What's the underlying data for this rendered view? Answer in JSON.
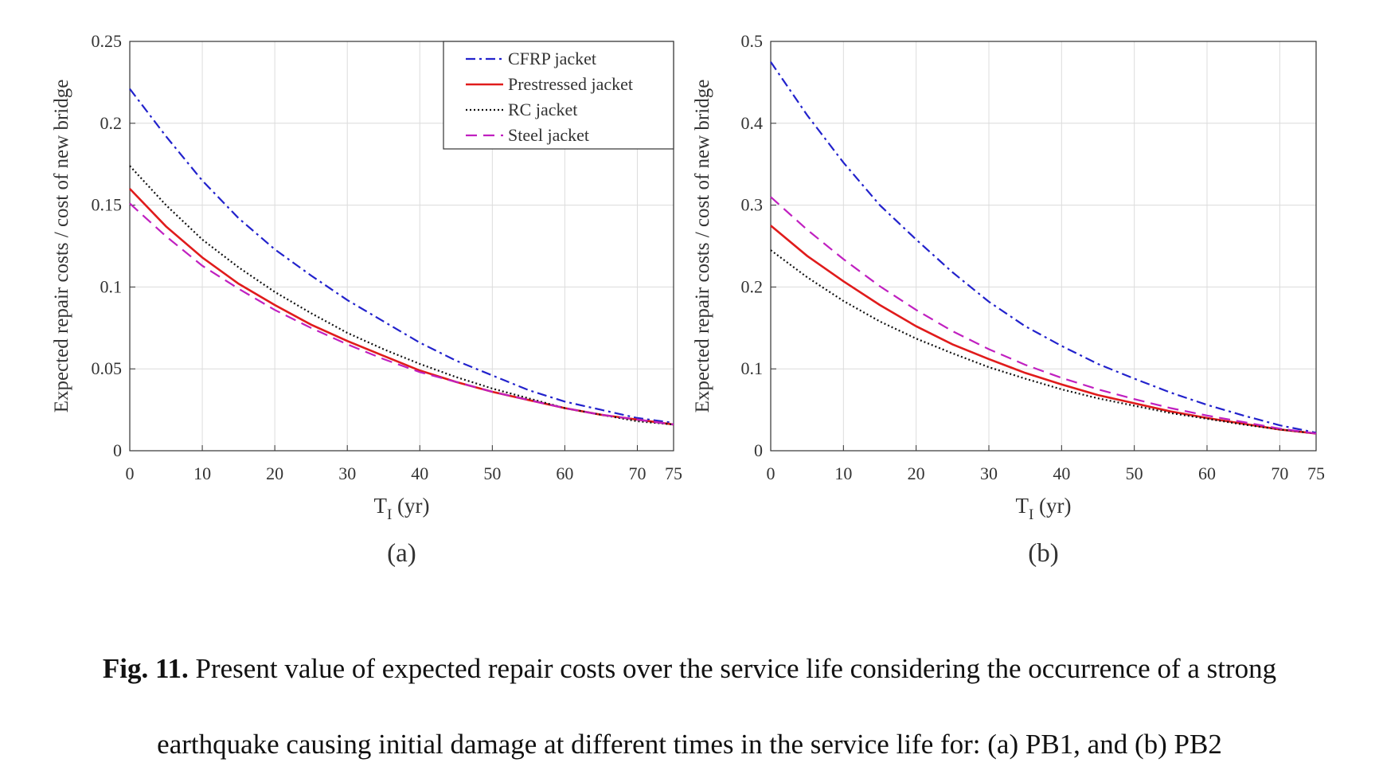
{
  "chart_data": [
    {
      "type": "line",
      "panel_label": "(a)",
      "xlabel_main": "T",
      "xlabel_sub": "I",
      "xlabel_unit": " (yr)",
      "ylabel": "Expected repair costs / cost of new bridge",
      "xlim": [
        0,
        75
      ],
      "ylim": [
        0,
        0.25
      ],
      "xticks": [
        0,
        10,
        20,
        30,
        40,
        50,
        60,
        70,
        75
      ],
      "yticks": [
        0,
        0.05,
        0.1,
        0.15,
        0.2,
        0.25
      ],
      "ytick_labels": [
        "0",
        "0.05",
        "0.1",
        "0.15",
        "0.2",
        "0.25"
      ],
      "grid": true,
      "legend_position": "top-right",
      "x": [
        0,
        5,
        10,
        15,
        20,
        25,
        30,
        35,
        40,
        45,
        50,
        55,
        60,
        65,
        70,
        75
      ],
      "series": [
        {
          "name": "CFRP jacket",
          "color": "#2222cc",
          "style": "dashdot",
          "values": [
            0.221,
            0.192,
            0.165,
            0.142,
            0.123,
            0.107,
            0.092,
            0.079,
            0.066,
            0.055,
            0.046,
            0.037,
            0.03,
            0.025,
            0.02,
            0.017
          ]
        },
        {
          "name": "Prestressed jacket",
          "color": "#e01b1b",
          "style": "solid",
          "values": [
            0.16,
            0.137,
            0.118,
            0.102,
            0.089,
            0.077,
            0.067,
            0.058,
            0.049,
            0.042,
            0.036,
            0.031,
            0.026,
            0.022,
            0.019,
            0.016
          ]
        },
        {
          "name": "RC jacket",
          "color": "#111111",
          "style": "dotted",
          "values": [
            0.174,
            0.15,
            0.129,
            0.112,
            0.097,
            0.084,
            0.072,
            0.062,
            0.053,
            0.045,
            0.038,
            0.032,
            0.026,
            0.022,
            0.018,
            0.016
          ]
        },
        {
          "name": "Steel jacket",
          "color": "#c020c0",
          "style": "dashed",
          "values": [
            0.151,
            0.131,
            0.113,
            0.099,
            0.086,
            0.075,
            0.065,
            0.056,
            0.048,
            0.042,
            0.036,
            0.031,
            0.026,
            0.022,
            0.019,
            0.016
          ]
        }
      ]
    },
    {
      "type": "line",
      "panel_label": "(b)",
      "xlabel_main": "T",
      "xlabel_sub": "I",
      "xlabel_unit": " (yr)",
      "ylabel": "Expected repair costs / cost of new bridge",
      "xlim": [
        0,
        75
      ],
      "ylim": [
        0,
        0.5
      ],
      "xticks": [
        0,
        10,
        20,
        30,
        40,
        50,
        60,
        70,
        75
      ],
      "yticks": [
        0,
        0.1,
        0.2,
        0.3,
        0.4,
        0.5
      ],
      "ytick_labels": [
        "0",
        "0.1",
        "0.2",
        "0.3",
        "0.4",
        "0.5"
      ],
      "grid": true,
      "x": [
        0,
        5,
        10,
        15,
        20,
        25,
        30,
        35,
        40,
        45,
        50,
        55,
        60,
        65,
        70,
        75
      ],
      "series": [
        {
          "name": "CFRP jacket",
          "color": "#2222cc",
          "style": "dashdot",
          "values": [
            0.475,
            0.41,
            0.352,
            0.3,
            0.258,
            0.218,
            0.182,
            0.152,
            0.128,
            0.106,
            0.088,
            0.071,
            0.056,
            0.043,
            0.031,
            0.022
          ]
        },
        {
          "name": "Prestressed jacket",
          "color": "#e01b1b",
          "style": "solid",
          "values": [
            0.275,
            0.238,
            0.207,
            0.178,
            0.152,
            0.13,
            0.112,
            0.095,
            0.081,
            0.068,
            0.058,
            0.048,
            0.04,
            0.033,
            0.026,
            0.021
          ]
        },
        {
          "name": "RC jacket",
          "color": "#111111",
          "style": "dotted",
          "values": [
            0.245,
            0.212,
            0.183,
            0.158,
            0.137,
            0.119,
            0.102,
            0.088,
            0.075,
            0.064,
            0.055,
            0.046,
            0.039,
            0.032,
            0.026,
            0.021
          ]
        },
        {
          "name": "Steel jacket",
          "color": "#c020c0",
          "style": "dashed",
          "values": [
            0.31,
            0.27,
            0.234,
            0.201,
            0.172,
            0.146,
            0.124,
            0.105,
            0.089,
            0.075,
            0.063,
            0.052,
            0.043,
            0.035,
            0.027,
            0.021
          ]
        }
      ]
    }
  ],
  "caption": {
    "label": "Fig. 11.",
    "line1_rest": " Present value of expected repair costs over the service life considering the occurrence of a strong",
    "line2": "earthquake causing initial damage at different times in the service life for: (a) PB1, and (b) PB2"
  }
}
